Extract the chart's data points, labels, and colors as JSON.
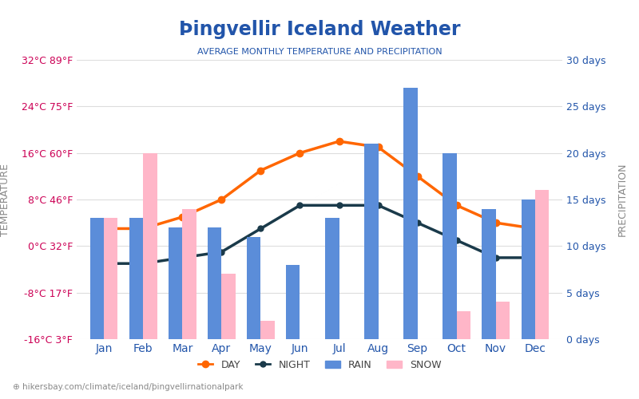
{
  "title": "Þingvellir Iceland Weather",
  "subtitle": "AVERAGE MONTHLY TEMPERATURE AND PRECIPITATION",
  "footer": "hikersbay.com/climate/iceland/þingvellirnationalpark",
  "months": [
    "Jan",
    "Feb",
    "Mar",
    "Apr",
    "May",
    "Jun",
    "Jul",
    "Aug",
    "Sep",
    "Oct",
    "Nov",
    "Dec"
  ],
  "day_temp": [
    3,
    3,
    5,
    8,
    13,
    16,
    18,
    17,
    12,
    7,
    4,
    3
  ],
  "night_temp": [
    -3,
    -3,
    -2,
    -1,
    3,
    7,
    7,
    7,
    4,
    1,
    -2,
    -2
  ],
  "rain_days": [
    13,
    13,
    12,
    12,
    11,
    8,
    13,
    21,
    27,
    20,
    14,
    15
  ],
  "snow_days": [
    13,
    20,
    14,
    7,
    2,
    0,
    0,
    0,
    0,
    3,
    4,
    16
  ],
  "temp_min": -16,
  "temp_max": 32,
  "temp_ticks": [
    -16,
    -8,
    0,
    8,
    16,
    24,
    32
  ],
  "temp_tick_labels_c": [
    "-16°C",
    "-8°C",
    "0°C",
    "8°C",
    "16°C",
    "24°C",
    "32°C"
  ],
  "temp_tick_labels_f": [
    "3°F",
    "17°F",
    "32°F",
    "46°F",
    "60°F",
    "75°F",
    "89°F"
  ],
  "precip_min": 0,
  "precip_max": 30,
  "precip_ticks": [
    0,
    5,
    10,
    15,
    20,
    25,
    30
  ],
  "precip_tick_labels": [
    "0 days",
    "5 days",
    "10 days",
    "15 days",
    "20 days",
    "25 days",
    "30 days"
  ],
  "color_day": "#FF6600",
  "color_night": "#1a3a4a",
  "color_rain": "#5b8dd9",
  "color_snow": "#ffb6c8",
  "color_title": "#2255aa",
  "color_subtitle": "#2255aa",
  "color_left_axis": "#cc0055",
  "color_right_axis": "#2255aa",
  "color_grid": "#dddddd",
  "background": "#ffffff",
  "bar_width": 0.35
}
